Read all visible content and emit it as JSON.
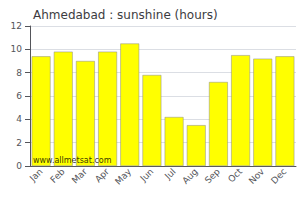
{
  "chart_data": {
    "type": "bar",
    "title": "Ahmedabad : sunshine (hours)",
    "categories": [
      "Jan",
      "Feb",
      "Mar",
      "Apr",
      "May",
      "Jun",
      "Jul",
      "Aug",
      "Sep",
      "Oct",
      "Nov",
      "Dec"
    ],
    "values": [
      9.4,
      9.8,
      9.0,
      9.8,
      10.5,
      7.8,
      4.2,
      3.5,
      7.2,
      9.5,
      9.2,
      9.4
    ],
    "color": "#ffff00",
    "ylim": [
      0,
      12
    ],
    "yticks": [
      0,
      2,
      4,
      6,
      8,
      10,
      12
    ],
    "grid": true,
    "annotation": "www.allmetsat.com"
  }
}
